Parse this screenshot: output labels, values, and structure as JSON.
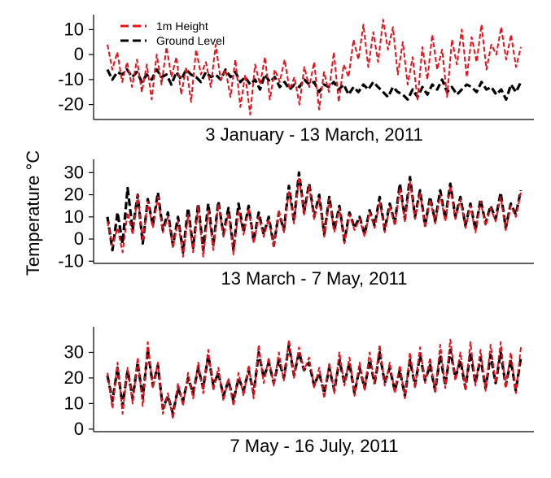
{
  "figure": {
    "ylabel": "Temperature °C",
    "legend": {
      "placement": "top-left of first panel"
    }
  },
  "colors": {
    "height_1m": "#e8101a",
    "ground": "#000000",
    "axis": "#000000"
  },
  "chart_data": [
    {
      "type": "line",
      "xlabel": "3 January - 13 March, 2011",
      "yticks": [
        10,
        0,
        -10,
        -20
      ],
      "ylim": [
        -26,
        16
      ],
      "grid": false,
      "legend": [
        "1m Height",
        "Ground Level"
      ],
      "series": [
        {
          "name": "1m Height",
          "values": [
            4,
            -6,
            1,
            -11,
            -3,
            -13,
            -2,
            -15,
            -4,
            -18,
            0,
            -12,
            3,
            -9,
            -1,
            -16,
            -5,
            -19,
            2,
            -8,
            -3,
            -13,
            4,
            -10,
            -6,
            -17,
            -2,
            -21,
            -8,
            -24,
            -4,
            -12,
            -1,
            -18,
            -6,
            -11,
            -2,
            -14,
            -9,
            -20,
            -5,
            -13,
            -3,
            -22,
            -7,
            -15,
            1,
            -19,
            -4,
            -9,
            6,
            -2,
            12,
            -5,
            9,
            -3,
            14,
            2,
            11,
            -8,
            5,
            -12,
            -1,
            -18,
            3,
            -10,
            8,
            -6,
            2,
            -17,
            6,
            -4,
            10,
            -9,
            7,
            -3,
            12,
            -6,
            4,
            0,
            11,
            -2,
            8,
            -5,
            3
          ]
        },
        {
          "name": "Ground Level",
          "values": [
            -6,
            -10,
            -7,
            -8,
            -6,
            -9,
            -7,
            -11,
            -8,
            -10,
            -6,
            -9,
            -8,
            -12,
            -7,
            -10,
            -6,
            -8,
            -9,
            -11,
            -7,
            -9,
            -8,
            -10,
            -6,
            -9,
            -7,
            -11,
            -9,
            -12,
            -10,
            -14,
            -8,
            -11,
            -9,
            -13,
            -11,
            -14,
            -12,
            -13,
            -10,
            -12,
            -11,
            -15,
            -12,
            -13,
            -11,
            -14,
            -12,
            -16,
            -13,
            -15,
            -12,
            -14,
            -11,
            -13,
            -15,
            -17,
            -13,
            -15,
            -16,
            -18,
            -14,
            -17,
            -13,
            -16,
            -12,
            -14,
            -10,
            -15,
            -13,
            -16,
            -14,
            -12,
            -13,
            -15,
            -11,
            -14,
            -13,
            -16,
            -14,
            -18,
            -12,
            -15,
            -11
          ]
        }
      ]
    },
    {
      "type": "line",
      "xlabel": "13 March - 7 May, 2011",
      "yticks": [
        30,
        20,
        10,
        0,
        -10
      ],
      "ylim": [
        -11,
        36
      ],
      "grid": false,
      "series": [
        {
          "name": "1m Height",
          "values": [
            8,
            -3,
            5,
            -6,
            12,
            2,
            20,
            -1,
            17,
            5,
            19,
            3,
            10,
            -4,
            8,
            -8,
            11,
            -6,
            15,
            -8,
            13,
            -5,
            16,
            1,
            12,
            -7,
            13,
            2,
            14,
            -2,
            10,
            1,
            9,
            -4,
            13,
            3,
            22,
            7,
            28,
            11,
            24,
            9,
            19,
            1,
            18,
            3,
            14,
            -2,
            11,
            4,
            9,
            1,
            12,
            5,
            17,
            3,
            15,
            6,
            23,
            8,
            26,
            9,
            21,
            5,
            18,
            7,
            20,
            8,
            24,
            9,
            18,
            5,
            15,
            3,
            17,
            6,
            14,
            8,
            19,
            4,
            15,
            10,
            21
          ]
        },
        {
          "name": "Ground Level",
          "values": [
            10,
            -5,
            12,
            -2,
            23,
            4,
            20,
            -2,
            18,
            6,
            21,
            4,
            12,
            -3,
            10,
            -6,
            14,
            -4,
            16,
            -5,
            16,
            -3,
            17,
            2,
            14,
            -5,
            16,
            3,
            15,
            -1,
            12,
            2,
            10,
            -3,
            12,
            4,
            24,
            8,
            30,
            12,
            25,
            10,
            20,
            2,
            19,
            4,
            15,
            -1,
            12,
            5,
            10,
            2,
            13,
            6,
            19,
            4,
            16,
            7,
            25,
            9,
            28,
            10,
            22,
            6,
            19,
            8,
            22,
            9,
            25,
            10,
            19,
            6,
            16,
            4,
            18,
            7,
            15,
            9,
            21,
            5,
            16,
            11,
            22
          ]
        }
      ]
    },
    {
      "type": "line",
      "xlabel": "7 May - 16 July, 2011",
      "yticks": [
        30,
        20,
        10,
        0
      ],
      "ylim": [
        -1,
        40
      ],
      "grid": false,
      "series": [
        {
          "name": "1m Height",
          "values": [
            22,
            8,
            26,
            6,
            24,
            10,
            28,
            9,
            34,
            16,
            26,
            6,
            14,
            4,
            18,
            9,
            22,
            12,
            26,
            14,
            31,
            15,
            24,
            11,
            20,
            9,
            22,
            13,
            25,
            12,
            33,
            18,
            28,
            17,
            30,
            19,
            35,
            20,
            32,
            23,
            28,
            16,
            24,
            12,
            26,
            14,
            30,
            17,
            28,
            13,
            26,
            15,
            30,
            18,
            33,
            17,
            26,
            14,
            25,
            12,
            30,
            16,
            32,
            18,
            28,
            14,
            33,
            16,
            35,
            19,
            30,
            15,
            34,
            17,
            31,
            15,
            33,
            18,
            34,
            16,
            30,
            14,
            32
          ]
        },
        {
          "name": "Ground Level",
          "values": [
            21,
            11,
            24,
            9,
            23,
            12,
            26,
            12,
            31,
            17,
            25,
            8,
            13,
            6,
            16,
            11,
            20,
            14,
            24,
            16,
            29,
            17,
            22,
            13,
            19,
            11,
            20,
            15,
            23,
            14,
            30,
            20,
            26,
            18,
            27,
            20,
            33,
            21,
            30,
            23,
            26,
            17,
            22,
            14,
            24,
            15,
            27,
            18,
            26,
            14,
            24,
            16,
            27,
            18,
            30,
            18,
            24,
            15,
            23,
            13,
            27,
            17,
            29,
            19,
            25,
            15,
            29,
            17,
            31,
            20,
            27,
            16,
            30,
            18,
            28,
            16,
            29,
            18,
            30,
            17,
            27,
            15,
            28
          ]
        }
      ]
    }
  ]
}
